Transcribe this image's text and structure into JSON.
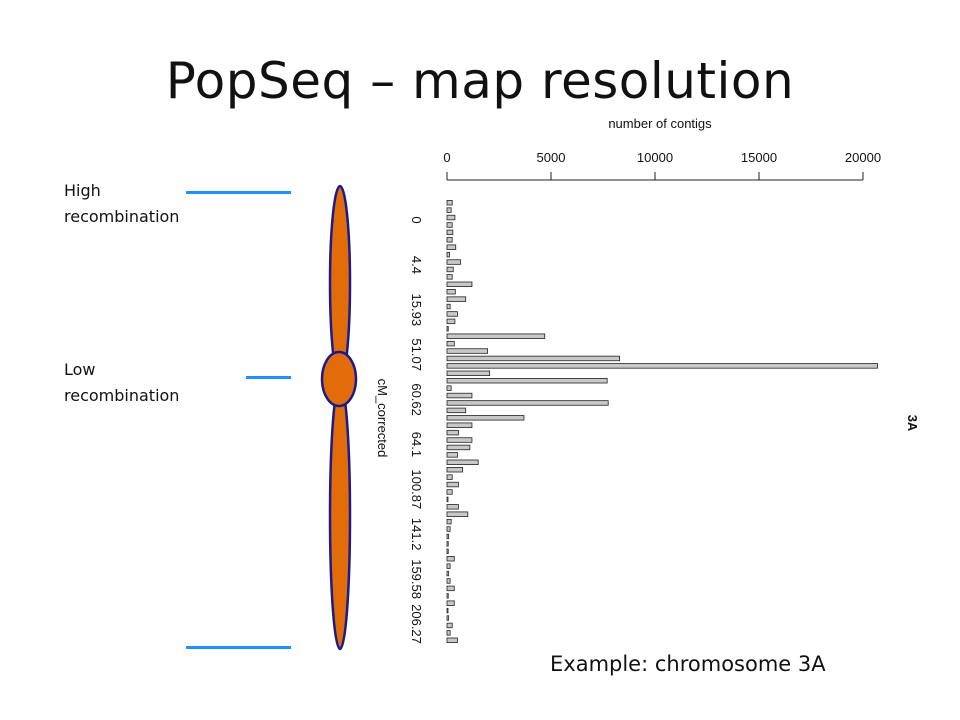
{
  "slide": {
    "title": "PopSeq – map resolution",
    "high_label": "High recombination",
    "low_label": "Low recombination",
    "example_caption": "Example:  chromosome 3A"
  },
  "colors": {
    "chromosome_fill": "#e36c0a",
    "chromosome_outline": "#1a1a8c",
    "marker_line": "#1e90ff",
    "bar_fill": "#c8c8c8",
    "bar_stroke": "#222222"
  },
  "chart_data": {
    "type": "bar",
    "orientation": "horizontal",
    "title": "",
    "top_axis_label": "number of contigs",
    "category_axis_label": "cM_corrected",
    "panel_label": "3A",
    "xlim": [
      0,
      20000
    ],
    "x_ticks": [
      0,
      5000,
      10000,
      15000,
      20000
    ],
    "category_tick_labels": [
      "0",
      "4.4",
      "15.93",
      "51.07",
      "60.62",
      "64.1",
      "100.87",
      "141.2",
      "159.58",
      "206.27"
    ],
    "values": [
      250,
      200,
      380,
      250,
      280,
      250,
      420,
      120,
      650,
      300,
      250,
      1200,
      400,
      900,
      150,
      500,
      380,
      60,
      4700,
      350,
      1950,
      8300,
      20700,
      2050,
      7700,
      200,
      1200,
      7750,
      900,
      3700,
      1200,
      550,
      1200,
      1100,
      500,
      1500,
      750,
      250,
      550,
      250,
      40,
      550,
      1000,
      200,
      150,
      80,
      60,
      60,
      350,
      150,
      80,
      150,
      350,
      60,
      350,
      40,
      80,
      250,
      150,
      500
    ]
  }
}
